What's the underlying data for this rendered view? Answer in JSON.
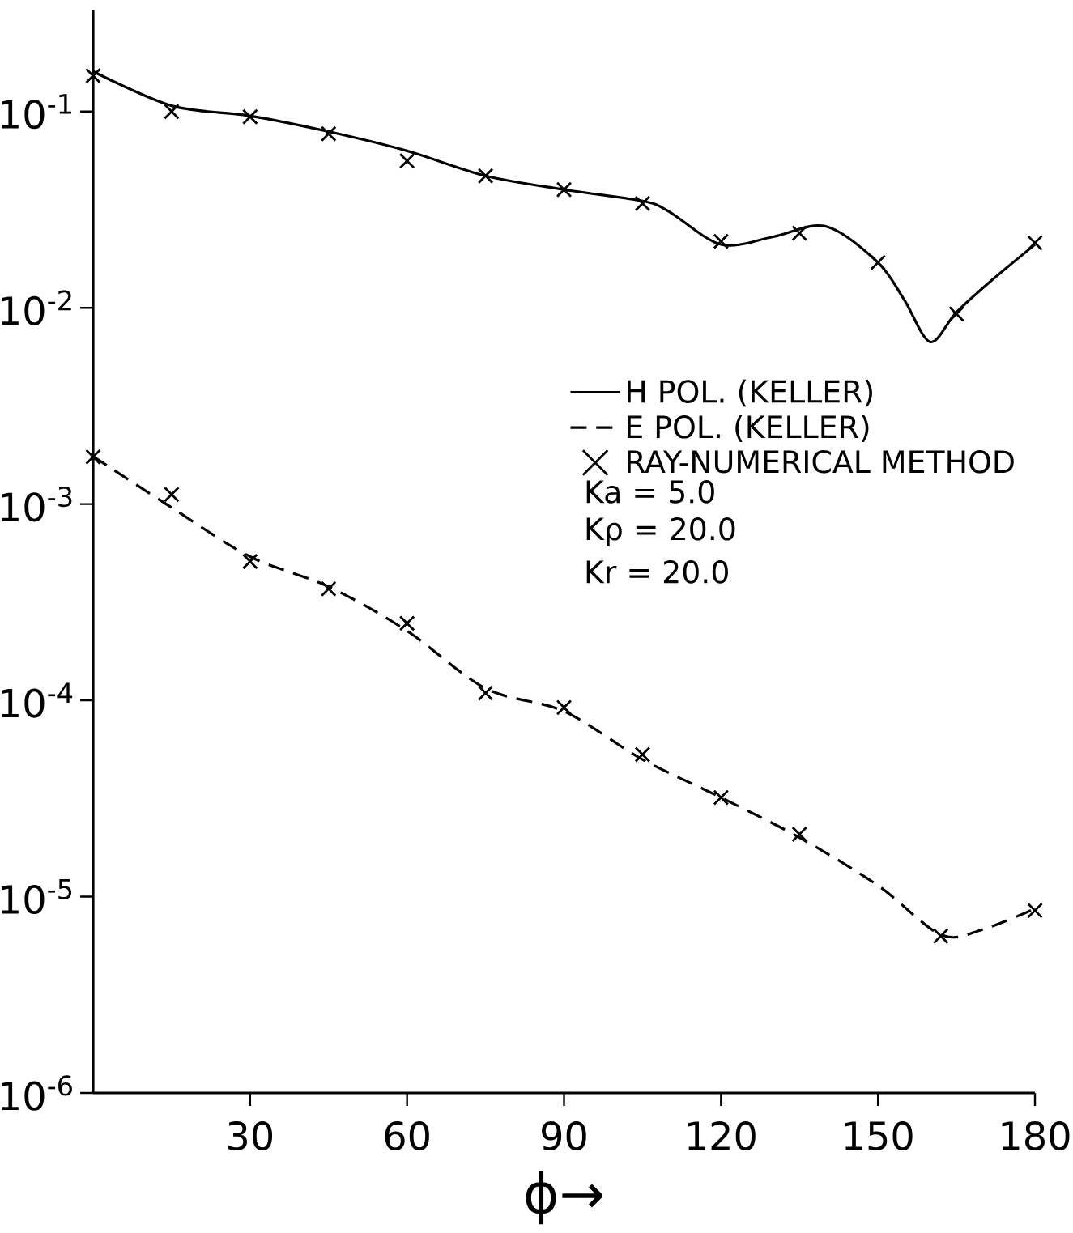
{
  "chart_data": {
    "type": "line",
    "log": "y",
    "legend": "right",
    "xlabel": "ϕ→",
    "xlim": [
      0,
      180
    ],
    "xticks": [
      30,
      60,
      90,
      120,
      150,
      180
    ],
    "ylim": [
      1e-06,
      0.33
    ],
    "yticks": [
      {
        "value": 1e-06,
        "label": "10$^{-6}$"
      },
      {
        "value": 1e-05,
        "label": "10$^{-5}$"
      },
      {
        "value": 0.0001,
        "label": "10$^{-4}$"
      },
      {
        "value": 0.001,
        "label": "10$^{-3}$"
      },
      {
        "value": 0.01,
        "label": "10$^{-2}$"
      },
      {
        "value": 0.1,
        "label": "10$^{-1}$"
      }
    ],
    "annotations": [
      "Ka = 5.0",
      "Kρ = 20.0",
      "Kr = 20.0"
    ],
    "series": [
      {
        "name": "H POL. (KELLER)",
        "type": "line",
        "line_style": "solid",
        "color": "#000000",
        "x": [
          0,
          15,
          30,
          45,
          60,
          75,
          90,
          105,
          110,
          120,
          130,
          140,
          150,
          155,
          160,
          165,
          172,
          180
        ],
        "values": [
          0.16,
          0.107,
          0.095,
          0.079,
          0.063,
          0.047,
          0.04,
          0.035,
          0.031,
          0.021,
          0.023,
          0.026,
          0.017,
          0.011,
          0.0067,
          0.0095,
          0.014,
          0.021
        ]
      },
      {
        "name": "E POL. (KELLER)",
        "type": "line",
        "line_style": "dashed",
        "color": "#000000",
        "x": [
          0,
          15,
          30,
          45,
          60,
          75,
          90,
          105,
          120,
          135,
          150,
          162,
          170,
          180
        ],
        "values": [
          0.00175,
          0.00096,
          0.00054,
          0.00038,
          0.000226,
          0.000115,
          8.8e-05,
          5e-05,
          3.2e-05,
          2e-05,
          1.14e-05,
          6.4e-06,
          6.8e-06,
          8.7e-06
        ]
      },
      {
        "name": "RAY-NUMERICAL METHOD",
        "type": "scatter",
        "marker": "cross",
        "color": "#000000",
        "x": [
          0,
          15,
          30,
          45,
          60,
          75,
          90,
          105,
          120,
          135,
          150,
          165,
          180
        ],
        "values": [
          0.152,
          0.1,
          0.094,
          0.077,
          0.056,
          0.047,
          0.04,
          0.034,
          0.0218,
          0.024,
          0.017,
          0.0093,
          0.0214
        ]
      },
      {
        "type": "scatter",
        "marker": "cross",
        "color": "#000000",
        "x": [
          0,
          15,
          30,
          45,
          60,
          75,
          90,
          105,
          120,
          135,
          162,
          180
        ],
        "values": [
          0.00174,
          0.00112,
          0.00051,
          0.00037,
          0.000247,
          0.000109,
          9.2e-05,
          5.3e-05,
          3.2e-05,
          2.08e-05,
          6.3e-06,
          8.5e-06
        ]
      }
    ]
  }
}
